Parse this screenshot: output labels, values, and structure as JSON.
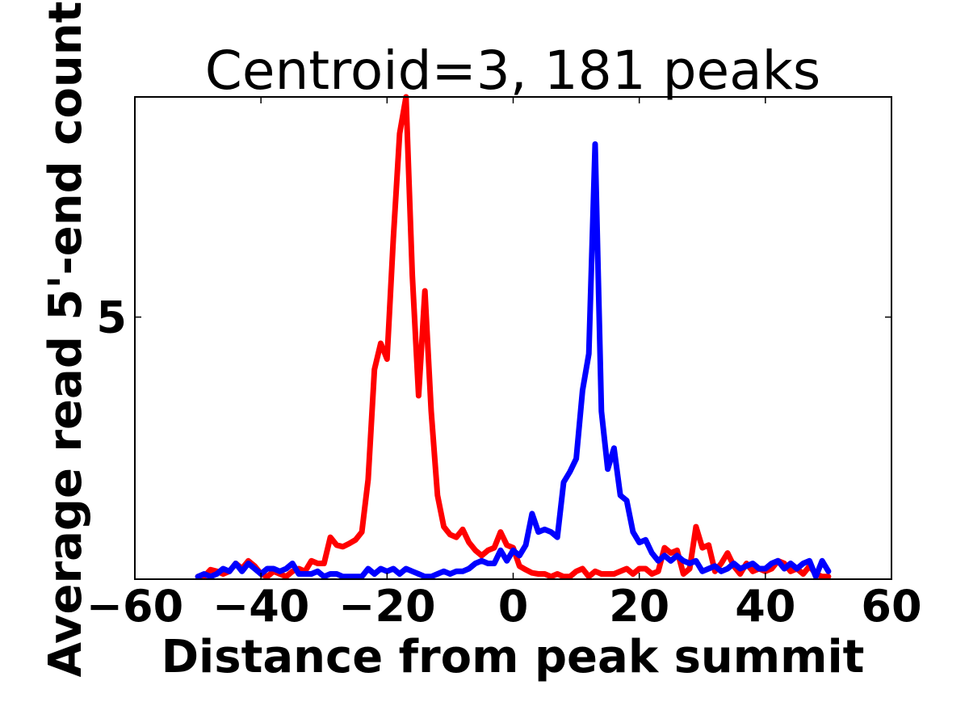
{
  "chart_data": {
    "type": "line",
    "title": "Centroid=3, 181 peaks",
    "xlabel": "Distance from peak summit",
    "ylabel": "Average read 5'-end count",
    "xlim": [
      -60,
      60
    ],
    "ylim": [
      0,
      9.2
    ],
    "xticks": [
      -60,
      -40,
      -20,
      0,
      20,
      40,
      60
    ],
    "xtick_labels": [
      "−60",
      "−40",
      "−20",
      "0",
      "20",
      "40",
      "60"
    ],
    "yticks": [
      5
    ],
    "ytick_labels": [
      "5"
    ],
    "grid": false,
    "legend": "none",
    "x": [
      -50,
      -49,
      -48,
      -47,
      -46,
      -45,
      -44,
      -43,
      -42,
      -41,
      -40,
      -39,
      -38,
      -37,
      -36,
      -35,
      -34,
      -33,
      -32,
      -31,
      -30,
      -29,
      -28,
      -27,
      -26,
      -25,
      -24,
      -23,
      -22,
      -21,
      -20,
      -19,
      -18,
      -17,
      -16,
      -15,
      -14,
      -13,
      -12,
      -11,
      -10,
      -9,
      -8,
      -7,
      -6,
      -5,
      -4,
      -3,
      -2,
      -1,
      0,
      1,
      2,
      3,
      4,
      5,
      6,
      7,
      8,
      9,
      10,
      11,
      12,
      13,
      14,
      15,
      16,
      17,
      18,
      19,
      20,
      21,
      22,
      23,
      24,
      25,
      26,
      27,
      28,
      29,
      30,
      31,
      32,
      33,
      34,
      35,
      36,
      37,
      38,
      39,
      40,
      41,
      42,
      43,
      44,
      45,
      46,
      47,
      48,
      49,
      50
    ],
    "series": [
      {
        "color": "#ff0000",
        "values": [
          0.05,
          0.05,
          0.18,
          0.15,
          0.1,
          0.15,
          0.3,
          0.2,
          0.35,
          0.25,
          0.1,
          0.05,
          0.15,
          0.1,
          0.05,
          0.15,
          0.2,
          0.15,
          0.35,
          0.3,
          0.3,
          0.8,
          0.65,
          0.62,
          0.68,
          0.75,
          0.9,
          1.9,
          4.0,
          4.5,
          4.2,
          6.5,
          8.5,
          9.2,
          5.8,
          3.5,
          5.5,
          3.2,
          1.6,
          1.0,
          0.85,
          0.8,
          0.95,
          0.7,
          0.55,
          0.45,
          0.55,
          0.6,
          0.9,
          0.65,
          0.6,
          0.25,
          0.18,
          0.12,
          0.1,
          0.1,
          0.05,
          0.1,
          0.05,
          0.05,
          0.15,
          0.2,
          0.05,
          0.15,
          0.1,
          0.1,
          0.1,
          0.15,
          0.2,
          0.1,
          0.2,
          0.2,
          0.1,
          0.15,
          0.6,
          0.5,
          0.55,
          0.1,
          0.2,
          1.0,
          0.6,
          0.65,
          0.15,
          0.3,
          0.5,
          0.25,
          0.1,
          0.3,
          0.15,
          0.2,
          0.15,
          0.2,
          0.35,
          0.3,
          0.15,
          0.2,
          0.1,
          0.25,
          0.1,
          0.05,
          0.05
        ]
      },
      {
        "color": "#0000ff",
        "values": [
          0.05,
          0.1,
          0.05,
          0.1,
          0.2,
          0.15,
          0.3,
          0.15,
          0.3,
          0.2,
          0.1,
          0.2,
          0.2,
          0.15,
          0.2,
          0.3,
          0.1,
          0.1,
          0.1,
          0.15,
          0.05,
          0.1,
          0.1,
          0.05,
          0.05,
          0.05,
          0.05,
          0.2,
          0.1,
          0.2,
          0.15,
          0.2,
          0.1,
          0.2,
          0.15,
          0.1,
          0.05,
          0.05,
          0.1,
          0.15,
          0.1,
          0.15,
          0.15,
          0.2,
          0.3,
          0.35,
          0.3,
          0.3,
          0.55,
          0.35,
          0.55,
          0.45,
          0.65,
          1.25,
          0.9,
          0.95,
          0.9,
          0.8,
          1.85,
          2.05,
          2.3,
          3.6,
          4.3,
          8.3,
          3.2,
          2.1,
          2.5,
          1.6,
          1.5,
          0.9,
          0.7,
          0.75,
          0.5,
          0.35,
          0.45,
          0.35,
          0.45,
          0.35,
          0.3,
          0.35,
          0.15,
          0.2,
          0.25,
          0.15,
          0.2,
          0.3,
          0.2,
          0.25,
          0.3,
          0.2,
          0.2,
          0.3,
          0.35,
          0.2,
          0.3,
          0.2,
          0.3,
          0.35,
          0.05,
          0.35,
          0.15
        ]
      }
    ]
  }
}
